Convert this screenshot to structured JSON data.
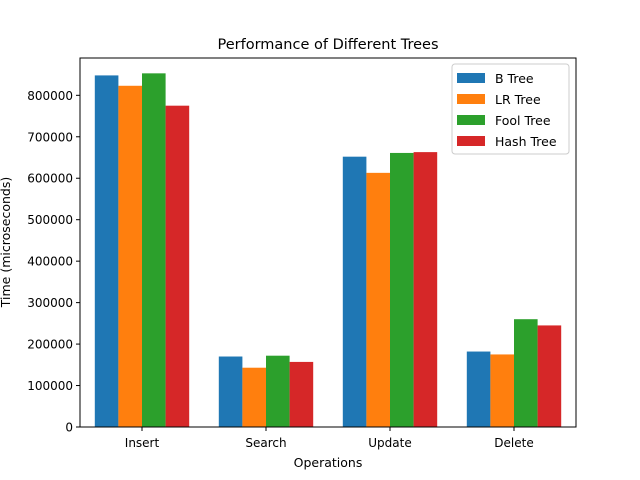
{
  "chart_data": {
    "type": "bar",
    "title": "Performance of Different Trees",
    "xlabel": "Operations",
    "ylabel": "Time (microseconds)",
    "categories": [
      "Insert",
      "Search",
      "Update",
      "Delete"
    ],
    "ylim": [
      0,
      890000
    ],
    "yticks": [
      0,
      100000,
      200000,
      300000,
      400000,
      500000,
      600000,
      700000,
      800000
    ],
    "legend_position": "top-right",
    "grid": false,
    "series": [
      {
        "name": "B Tree",
        "color": "#1f77b4",
        "values": [
          848000,
          170000,
          652000,
          182000
        ]
      },
      {
        "name": "LR Tree",
        "color": "#ff7f0e",
        "values": [
          823000,
          143000,
          613000,
          175000
        ]
      },
      {
        "name": "Fool Tree",
        "color": "#2ca02c",
        "values": [
          853000,
          172000,
          661000,
          260000
        ]
      },
      {
        "name": "Hash Tree",
        "color": "#d62728",
        "values": [
          775000,
          157000,
          663000,
          245000
        ]
      }
    ]
  }
}
